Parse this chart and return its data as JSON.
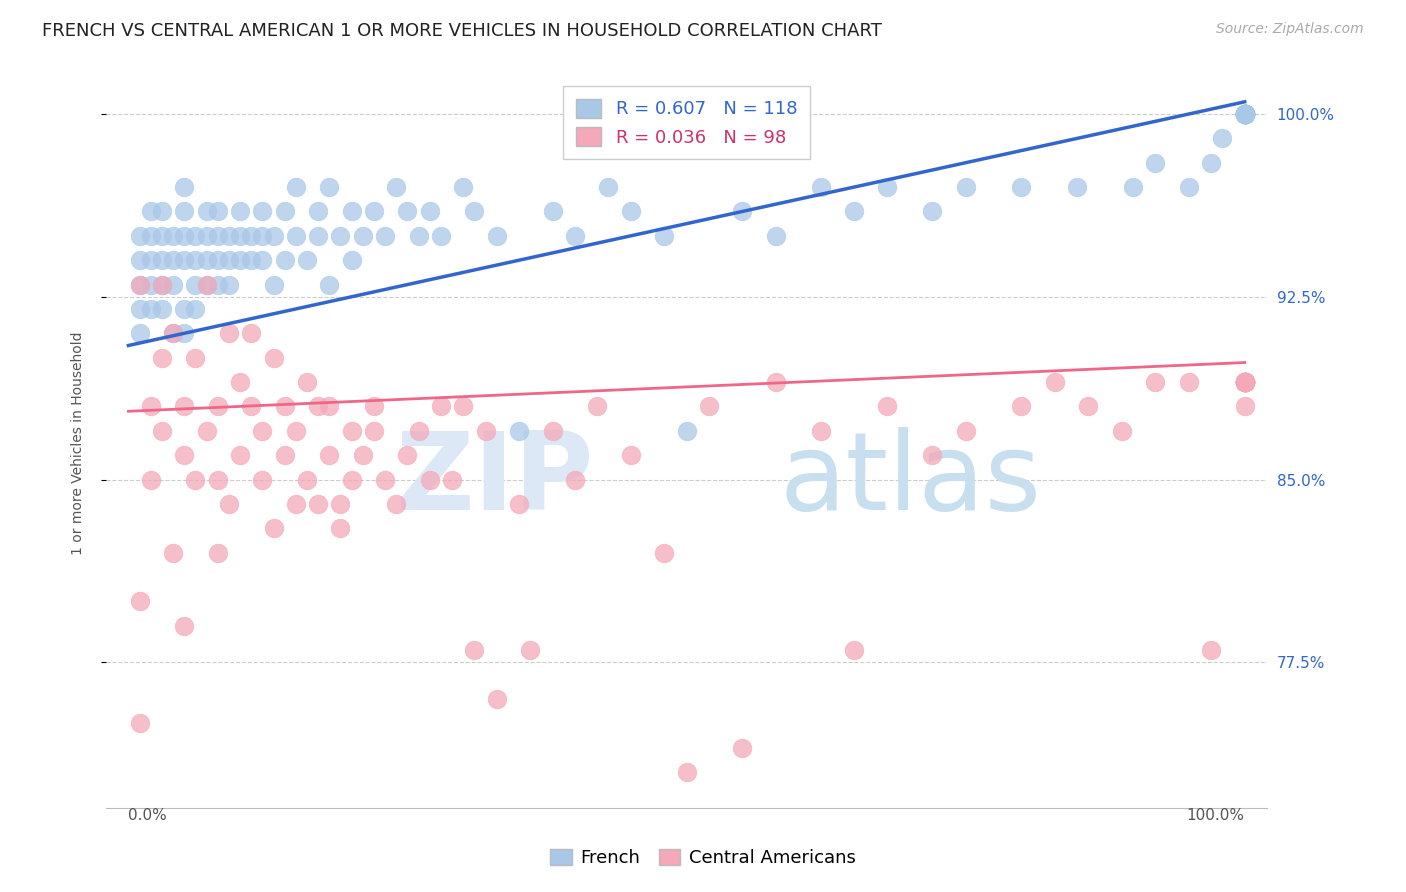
{
  "title": "FRENCH VS CENTRAL AMERICAN 1 OR MORE VEHICLES IN HOUSEHOLD CORRELATION CHART",
  "source": "Source: ZipAtlas.com",
  "ylabel": "1 or more Vehicles in Household",
  "xlim": [
    -0.02,
    1.02
  ],
  "ylim": [
    0.715,
    1.015
  ],
  "yticks": [
    0.775,
    0.85,
    0.925,
    1.0
  ],
  "ytick_labels": [
    "77.5%",
    "85.0%",
    "92.5%",
    "100.0%"
  ],
  "french_R": 0.607,
  "french_N": 118,
  "central_R": 0.036,
  "central_N": 98,
  "french_color": "#a8c8e8",
  "central_color": "#f4a8b8",
  "french_line_color": "#3366cc",
  "central_line_color": "#ee6688",
  "legend_french_label": "French",
  "legend_central_label": "Central Americans",
  "watermark_zip": "ZIP",
  "watermark_atlas": "atlas",
  "title_fontsize": 13,
  "axis_label_fontsize": 10,
  "tick_fontsize": 11,
  "legend_fontsize": 13,
  "source_fontsize": 10,
  "french_line_x0": 0.0,
  "french_line_y0": 0.905,
  "french_line_x1": 1.0,
  "french_line_y1": 1.005,
  "central_line_x0": 0.0,
  "central_line_y0": 0.878,
  "central_line_x1": 1.0,
  "central_line_y1": 0.898,
  "french_scatter_x": [
    0.01,
    0.01,
    0.01,
    0.01,
    0.01,
    0.02,
    0.02,
    0.02,
    0.02,
    0.02,
    0.03,
    0.03,
    0.03,
    0.03,
    0.03,
    0.04,
    0.04,
    0.04,
    0.04,
    0.05,
    0.05,
    0.05,
    0.05,
    0.05,
    0.05,
    0.06,
    0.06,
    0.06,
    0.06,
    0.07,
    0.07,
    0.07,
    0.07,
    0.08,
    0.08,
    0.08,
    0.08,
    0.09,
    0.09,
    0.09,
    0.1,
    0.1,
    0.1,
    0.11,
    0.11,
    0.12,
    0.12,
    0.12,
    0.13,
    0.13,
    0.14,
    0.14,
    0.15,
    0.15,
    0.16,
    0.17,
    0.17,
    0.18,
    0.18,
    0.19,
    0.2,
    0.2,
    0.21,
    0.22,
    0.23,
    0.24,
    0.25,
    0.26,
    0.27,
    0.28,
    0.3,
    0.31,
    0.33,
    0.35,
    0.38,
    0.4,
    0.43,
    0.45,
    0.48,
    0.5,
    0.55,
    0.58,
    0.62,
    0.65,
    0.68,
    0.72,
    0.75,
    0.8,
    0.85,
    0.9,
    0.92,
    0.95,
    0.97,
    0.98,
    1.0,
    1.0,
    1.0,
    1.0,
    1.0,
    1.0,
    1.0,
    1.0,
    1.0,
    1.0,
    1.0,
    1.0,
    1.0,
    1.0,
    1.0,
    1.0,
    1.0,
    1.0,
    1.0,
    1.0,
    1.0,
    1.0,
    1.0,
    1.0
  ],
  "french_scatter_y": [
    0.94,
    0.95,
    0.93,
    0.92,
    0.91,
    0.95,
    0.96,
    0.94,
    0.93,
    0.92,
    0.94,
    0.93,
    0.92,
    0.96,
    0.95,
    0.94,
    0.93,
    0.95,
    0.91,
    0.97,
    0.96,
    0.95,
    0.94,
    0.92,
    0.91,
    0.95,
    0.94,
    0.93,
    0.92,
    0.95,
    0.94,
    0.93,
    0.96,
    0.95,
    0.94,
    0.93,
    0.96,
    0.94,
    0.95,
    0.93,
    0.95,
    0.94,
    0.96,
    0.94,
    0.95,
    0.96,
    0.94,
    0.95,
    0.93,
    0.95,
    0.94,
    0.96,
    0.95,
    0.97,
    0.94,
    0.96,
    0.95,
    0.97,
    0.93,
    0.95,
    0.96,
    0.94,
    0.95,
    0.96,
    0.95,
    0.97,
    0.96,
    0.95,
    0.96,
    0.95,
    0.97,
    0.96,
    0.95,
    0.87,
    0.96,
    0.95,
    0.97,
    0.96,
    0.95,
    0.87,
    0.96,
    0.95,
    0.97,
    0.96,
    0.97,
    0.96,
    0.97,
    0.97,
    0.97,
    0.97,
    0.98,
    0.97,
    0.98,
    0.99,
    1.0,
    1.0,
    1.0,
    1.0,
    1.0,
    1.0,
    1.0,
    1.0,
    1.0,
    1.0,
    1.0,
    1.0,
    1.0,
    1.0,
    1.0,
    1.0,
    1.0,
    1.0,
    1.0,
    1.0,
    1.0,
    1.0,
    1.0,
    1.0
  ],
  "central_scatter_x": [
    0.01,
    0.01,
    0.01,
    0.02,
    0.02,
    0.03,
    0.03,
    0.03,
    0.04,
    0.04,
    0.05,
    0.05,
    0.05,
    0.06,
    0.06,
    0.07,
    0.07,
    0.08,
    0.08,
    0.08,
    0.09,
    0.09,
    0.1,
    0.1,
    0.11,
    0.11,
    0.12,
    0.12,
    0.13,
    0.13,
    0.14,
    0.14,
    0.15,
    0.15,
    0.16,
    0.16,
    0.17,
    0.17,
    0.18,
    0.18,
    0.19,
    0.19,
    0.2,
    0.2,
    0.21,
    0.22,
    0.22,
    0.23,
    0.24,
    0.25,
    0.26,
    0.27,
    0.28,
    0.29,
    0.3,
    0.31,
    0.32,
    0.33,
    0.35,
    0.36,
    0.38,
    0.4,
    0.42,
    0.45,
    0.48,
    0.5,
    0.52,
    0.55,
    0.58,
    0.62,
    0.65,
    0.68,
    0.72,
    0.75,
    0.8,
    0.83,
    0.86,
    0.89,
    0.92,
    0.95,
    0.97,
    1.0,
    1.0,
    1.0,
    1.0,
    1.0,
    1.0,
    1.0,
    1.0,
    1.0,
    1.0,
    1.0,
    1.0,
    1.0,
    1.0,
    1.0,
    1.0,
    1.0
  ],
  "central_scatter_y": [
    0.8,
    0.93,
    0.75,
    0.88,
    0.85,
    0.9,
    0.87,
    0.93,
    0.82,
    0.91,
    0.86,
    0.88,
    0.79,
    0.85,
    0.9,
    0.87,
    0.93,
    0.82,
    0.88,
    0.85,
    0.91,
    0.84,
    0.89,
    0.86,
    0.91,
    0.88,
    0.85,
    0.87,
    0.83,
    0.9,
    0.86,
    0.88,
    0.84,
    0.87,
    0.89,
    0.85,
    0.88,
    0.84,
    0.88,
    0.86,
    0.84,
    0.83,
    0.87,
    0.85,
    0.86,
    0.88,
    0.87,
    0.85,
    0.84,
    0.86,
    0.87,
    0.85,
    0.88,
    0.85,
    0.88,
    0.78,
    0.87,
    0.76,
    0.84,
    0.78,
    0.87,
    0.85,
    0.88,
    0.86,
    0.82,
    0.73,
    0.88,
    0.74,
    0.89,
    0.87,
    0.78,
    0.88,
    0.86,
    0.87,
    0.88,
    0.89,
    0.88,
    0.87,
    0.89,
    0.89,
    0.78,
    0.88,
    0.89,
    0.89,
    0.89,
    0.89,
    0.89,
    0.89,
    0.89,
    0.89,
    0.89,
    0.89,
    0.89,
    0.89,
    0.89,
    0.89,
    0.89,
    0.89
  ]
}
